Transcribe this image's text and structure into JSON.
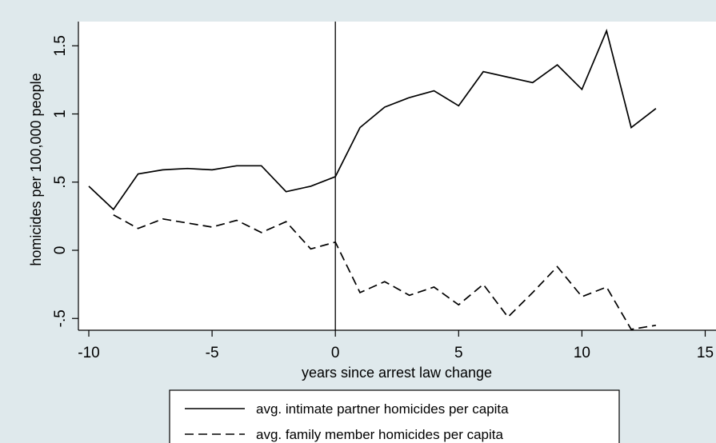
{
  "chart_data": {
    "type": "line",
    "xlabel": "years since arrest law change",
    "ylabel": "homicides per 100,000 people",
    "xlim": [
      -10,
      15
    ],
    "ylim": [
      -0.6,
      1.65
    ],
    "xticks": [
      -10,
      -5,
      0,
      5,
      10,
      15
    ],
    "xtick_labels": [
      "-10",
      "-5",
      "0",
      "5",
      "10",
      "15"
    ],
    "yticks": [
      -0.5,
      0,
      0.5,
      1,
      1.5
    ],
    "ytick_labels": [
      "-.5",
      "0",
      ".5",
      "1",
      "1.5"
    ],
    "vertical_reference_line_x": 0,
    "grid": false,
    "legend_position": "bottom",
    "series": [
      {
        "name": "avg. intimate partner homicides per capita",
        "line_style": "solid",
        "color": "#000000",
        "x": [
          -10,
          -9,
          -8,
          -7,
          -6,
          -5,
          -4,
          -3,
          -2,
          -1,
          0,
          1,
          2,
          3,
          4,
          5,
          6,
          7,
          8,
          9,
          10,
          11,
          12,
          13
        ],
        "y": [
          0.47,
          0.3,
          0.56,
          0.59,
          0.6,
          0.59,
          0.62,
          0.62,
          0.43,
          0.47,
          0.54,
          0.9,
          1.05,
          1.12,
          1.17,
          1.06,
          1.31,
          1.27,
          1.23,
          1.36,
          1.18,
          1.61,
          0.9,
          1.04
        ]
      },
      {
        "name": "avg. family member homicides per capita",
        "line_style": "dashed",
        "color": "#000000",
        "x": [
          -9,
          -8,
          -7,
          -6,
          -5,
          -4,
          -3,
          -2,
          -1,
          0,
          1,
          2,
          3,
          4,
          5,
          6,
          7,
          8,
          9,
          10,
          11,
          12,
          13
        ],
        "y": [
          0.26,
          0.16,
          0.23,
          0.2,
          0.17,
          0.22,
          0.13,
          0.21,
          0.01,
          0.06,
          -0.31,
          -0.23,
          -0.33,
          -0.27,
          -0.4,
          -0.25,
          -0.49,
          -0.31,
          -0.12,
          -0.34,
          -0.27,
          -0.58,
          -0.55
        ]
      }
    ]
  }
}
